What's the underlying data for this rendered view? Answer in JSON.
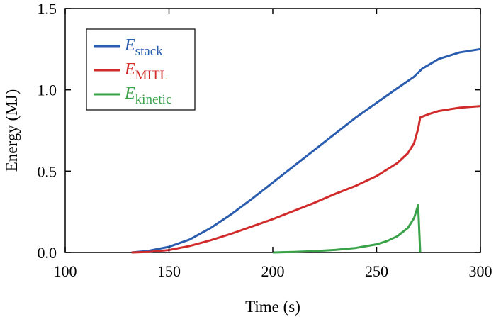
{
  "chart_data": {
    "type": "line",
    "title": "",
    "xlabel": "Time (s)",
    "ylabel": "Energy (MJ)",
    "xlim": [
      100,
      300
    ],
    "ylim": [
      0,
      1.5
    ],
    "xticks": [
      "100",
      "150",
      "200",
      "250",
      "300"
    ],
    "yticks": [
      "0.0",
      "0.5",
      "1.0",
      "1.5"
    ],
    "grid": false,
    "legend_position": "top-left",
    "series": [
      {
        "name_main": "E",
        "name_sub": "stack",
        "color": "#2a5db0",
        "x": [
          132,
          140,
          150,
          160,
          170,
          180,
          190,
          200,
          210,
          220,
          230,
          240,
          250,
          260,
          268,
          272,
          280,
          290,
          300
        ],
        "y": [
          0.0,
          0.01,
          0.035,
          0.08,
          0.15,
          0.235,
          0.33,
          0.43,
          0.53,
          0.63,
          0.73,
          0.83,
          0.92,
          1.01,
          1.08,
          1.13,
          1.19,
          1.23,
          1.25
        ]
      },
      {
        "name_main": "E",
        "name_sub": "MITL",
        "color": "#d12a2a",
        "x": [
          132,
          140,
          150,
          160,
          170,
          180,
          190,
          200,
          210,
          220,
          230,
          240,
          250,
          260,
          265,
          268,
          270,
          271,
          275,
          280,
          290,
          300
        ],
        "y": [
          0.0,
          0.003,
          0.015,
          0.04,
          0.075,
          0.115,
          0.16,
          0.205,
          0.255,
          0.305,
          0.36,
          0.41,
          0.47,
          0.55,
          0.61,
          0.67,
          0.76,
          0.83,
          0.85,
          0.87,
          0.89,
          0.9
        ]
      },
      {
        "name_main": "E",
        "name_sub": "kinetic",
        "color": "#3aa34a",
        "x": [
          200,
          210,
          220,
          230,
          240,
          250,
          255,
          260,
          265,
          268,
          270,
          271
        ],
        "y": [
          0.0,
          0.003,
          0.008,
          0.016,
          0.028,
          0.05,
          0.07,
          0.1,
          0.15,
          0.21,
          0.29,
          0.0
        ]
      }
    ]
  }
}
